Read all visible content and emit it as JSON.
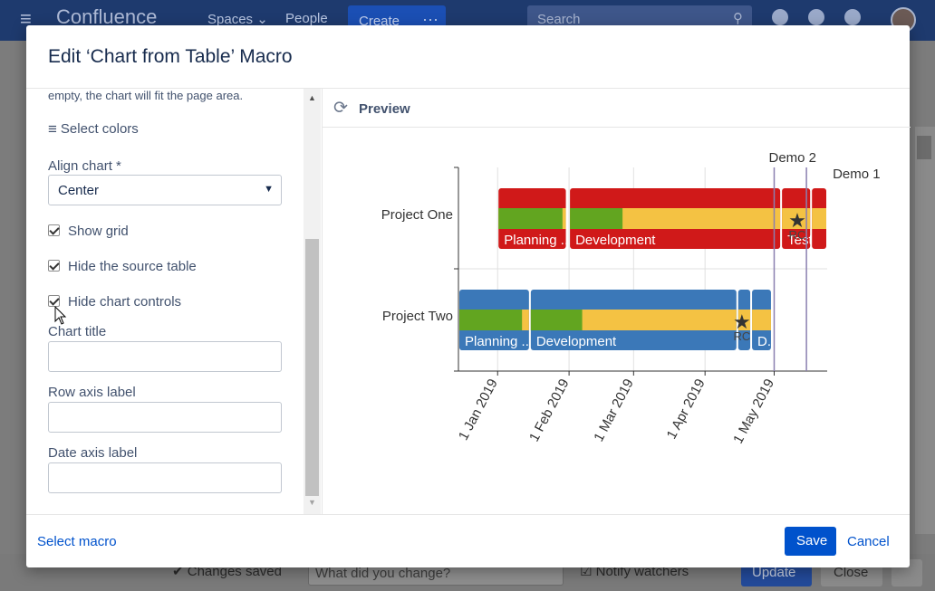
{
  "app": {
    "logo_text": "Confluence",
    "nav_spaces": "Spaces",
    "nav_people": "People",
    "create_label": "Create",
    "search_placeholder": "Search"
  },
  "page_bottom": {
    "changes_saved": "Changes saved",
    "change_placeholder": "What did you change?",
    "notify_watchers": "Notify watchers",
    "update_label": "Update",
    "close_label": "Close"
  },
  "modal": {
    "title": "Edit ‘Chart from Table’ Macro",
    "left": {
      "note": "empty, the chart will fit the page area.",
      "select_colors": "Select colors",
      "align_label": "Align chart *",
      "align_value": "Center",
      "show_grid": "Show grid",
      "hide_source": "Hide the source table",
      "hide_controls": "Hide chart controls",
      "chart_title_label": "Chart title",
      "row_axis_label": "Row axis label",
      "date_axis_label": "Date axis label"
    },
    "preview_label": "Preview",
    "footer": {
      "select_macro": "Select macro",
      "save": "Save",
      "cancel": "Cancel"
    }
  },
  "chart_data": {
    "type": "gantt",
    "rows": [
      "Project One",
      "Project Two"
    ],
    "x_axis_ticks": [
      "1 Jan 2019",
      "1 Feb 2019",
      "1 Mar 2019",
      "1 Apr 2019",
      "1 May 2019"
    ],
    "vertical_markers": [
      {
        "label": "Demo 2",
        "date": "2019-05-01"
      },
      {
        "label": "Demo 1",
        "date": "2019-05-15"
      }
    ],
    "colors": {
      "red": "#d01919",
      "blue": "#3b78b8",
      "green": "#62a520",
      "yellow": "#f4c243"
    },
    "series": [
      {
        "row": "Project One",
        "phases": [
          {
            "label": "Planning ...",
            "start": "2019-01-01",
            "end": "2019-01-31",
            "progress": 0.95
          },
          {
            "label": "Development",
            "start": "2019-02-01",
            "end": "2019-05-04",
            "progress": 0.25
          },
          {
            "label": "Test..",
            "start": "2019-05-04",
            "end": "2019-05-17",
            "progress": 0
          },
          {
            "label": "",
            "start": "2019-05-17",
            "end": "2019-05-24",
            "progress": 0
          }
        ],
        "milestone": {
          "label": "RC",
          "date": "2019-05-11"
        }
      },
      {
        "row": "Project Two",
        "phases": [
          {
            "label": "Planning ...",
            "start": "2018-12-15",
            "end": "2019-01-15",
            "progress": 0.9
          },
          {
            "label": "Development",
            "start": "2019-01-15",
            "end": "2019-04-15",
            "progress": 0.25
          },
          {
            "label": "",
            "start": "2019-04-15",
            "end": "2019-04-21",
            "progress": 0
          },
          {
            "label": "D..",
            "start": "2019-04-21",
            "end": "2019-04-30",
            "progress": 0
          }
        ],
        "milestone": {
          "label": "RC",
          "date": "2019-04-17"
        }
      }
    ]
  }
}
